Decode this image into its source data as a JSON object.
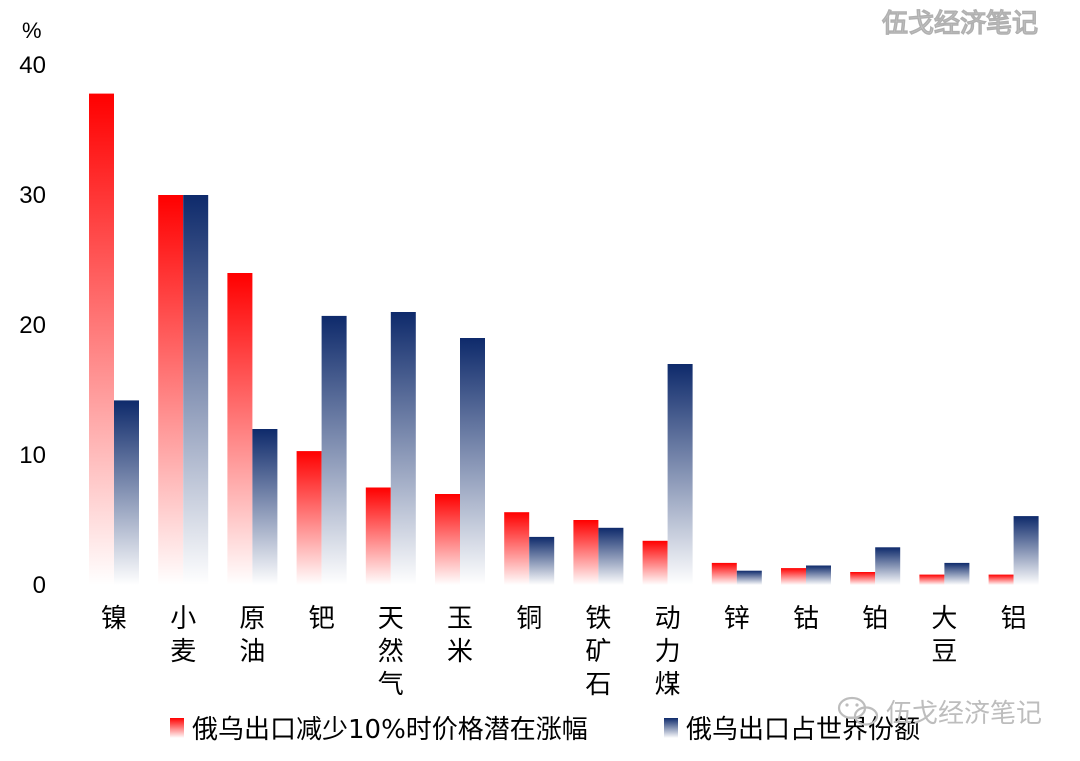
{
  "watermark_top": "伍戈经济笔记",
  "watermark_bottom": "伍戈经济笔记",
  "wechat_icon": "wechat-icon",
  "chart_data": {
    "type": "bar",
    "unit": "%",
    "ylim": [
      0,
      40
    ],
    "yticks": [
      0,
      10,
      20,
      30,
      40
    ],
    "grid": false,
    "legend_position": "bottom",
    "categories": [
      "镍",
      "小麦",
      "原油",
      "钯",
      "天然气",
      "玉米",
      "铜",
      "铁矿石",
      "动力煤",
      "锌",
      "钴",
      "铂",
      "大豆",
      "铝"
    ],
    "series": [
      {
        "name": "俄乌出口减少10%时价格潜在涨幅",
        "color": "#ff0000",
        "values": [
          37.8,
          30.0,
          24.0,
          10.3,
          7.5,
          7.0,
          5.6,
          5.0,
          3.4,
          1.7,
          1.3,
          1.0,
          0.8,
          0.8
        ]
      },
      {
        "name": "俄乌出口占世界份额",
        "color": "#0e2a6b",
        "values": [
          14.2,
          30.0,
          12.0,
          20.7,
          21.0,
          19.0,
          3.7,
          4.4,
          17.0,
          1.1,
          1.5,
          2.9,
          1.7,
          5.3
        ]
      }
    ]
  }
}
